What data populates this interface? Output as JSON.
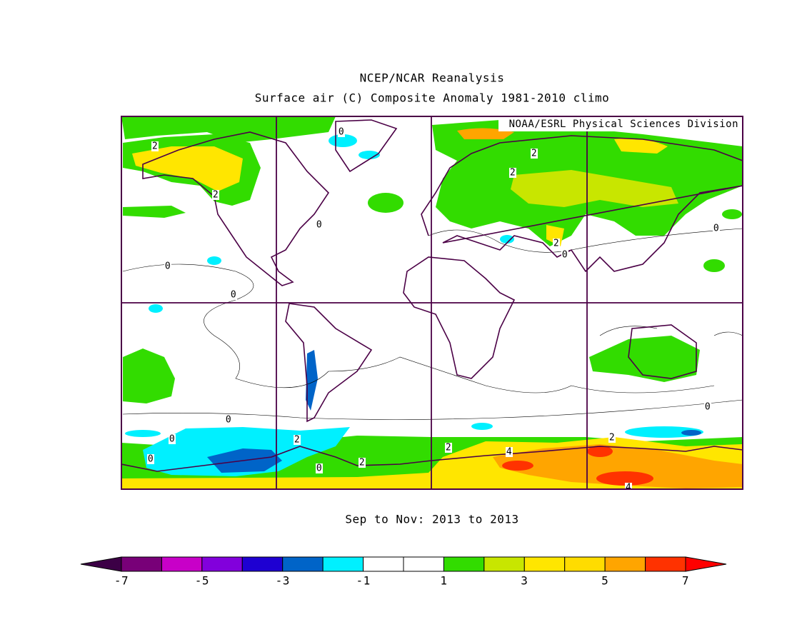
{
  "title": "NCEP/NCAR Reanalysis",
  "subtitle": "Surface air (C) Composite Anomaly 1981-2010 climo",
  "credit": "NOAA/ESRL Physical Sciences Division",
  "period": "Sep to Nov: 2013 to 2013",
  "contour_labels": [
    2,
    2,
    0,
    0,
    0,
    0,
    2,
    2,
    2,
    0,
    0,
    0,
    0,
    2,
    0,
    0,
    2,
    2,
    4,
    2,
    0,
    4
  ],
  "colorbar": {
    "levels": [
      -7,
      -6,
      -5,
      -4,
      -3,
      -2,
      -1,
      0,
      1,
      2,
      3,
      4,
      5,
      6,
      7
    ],
    "colors": [
      "#3c0046",
      "#780078",
      "#c800c8",
      "#8200dc",
      "#1e00d2",
      "#0064c8",
      "#00f0ff",
      "#ffffff",
      "#ffffff",
      "#32dc00",
      "#c8e600",
      "#ffe600",
      "#ffdc00",
      "#ffa500",
      "#ff3200",
      "#ff0000"
    ],
    "ticks": [
      -7,
      -5,
      -3,
      -1,
      1,
      3,
      5,
      7
    ]
  }
}
